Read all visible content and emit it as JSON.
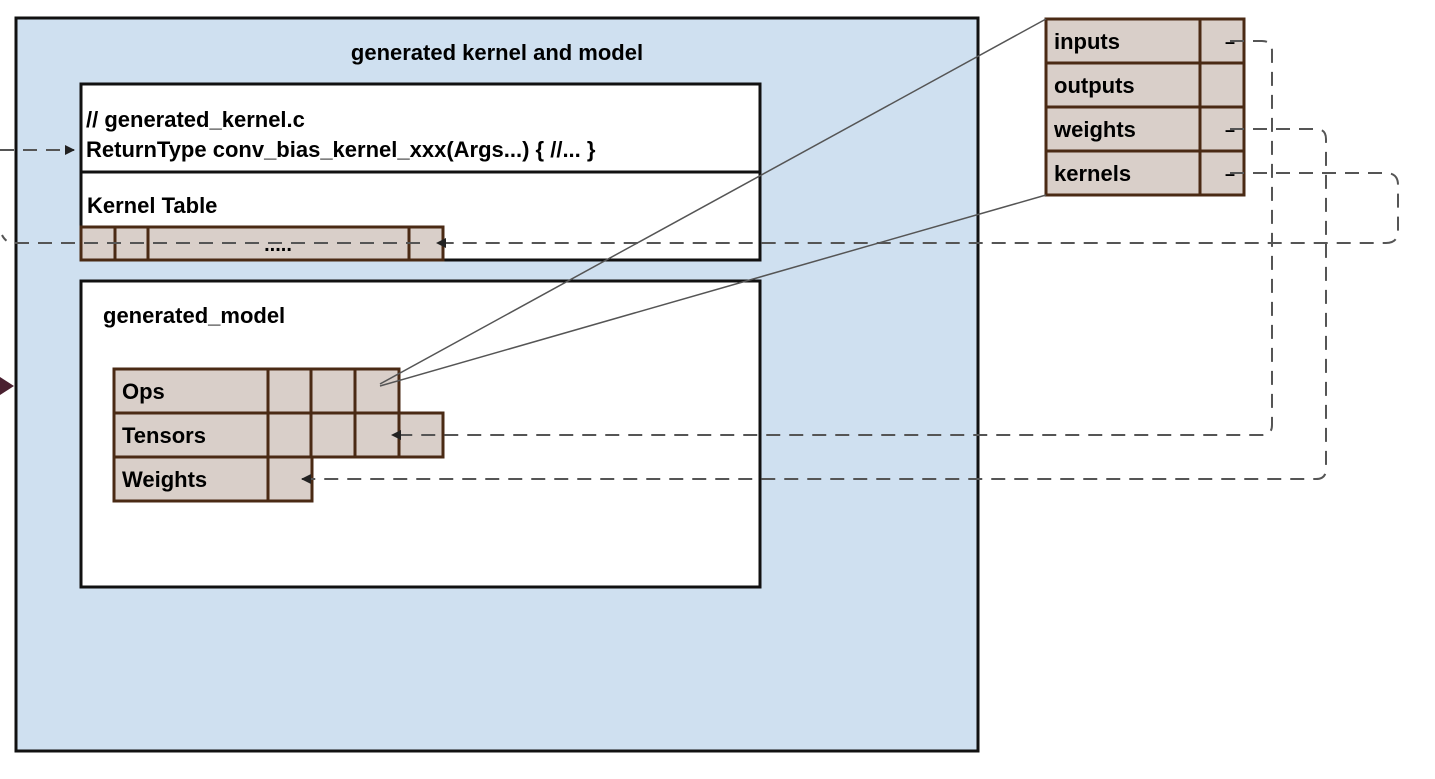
{
  "outer": {
    "title": "generated kernel and model"
  },
  "kernel_file": {
    "comment": "// generated_kernel.c",
    "signature": "ReturnType conv_bias_kernel_xxx(Args...) { //... }"
  },
  "kernel_table": {
    "label": "Kernel Table",
    "ellipsis": "....."
  },
  "model": {
    "label": "generated_model",
    "rows": [
      "Ops",
      "Tensors",
      "Weights"
    ]
  },
  "op_struct": {
    "fields": [
      "inputs",
      "outputs",
      "weights",
      "kernels"
    ],
    "stub_symbols": [
      "–",
      "",
      "–",
      "–"
    ]
  },
  "colors": {
    "outer_fill": "#cfe0f0",
    "cell_fill": "#d9cfc9",
    "cell_border": "#4a2a14",
    "line": "#555555"
  }
}
